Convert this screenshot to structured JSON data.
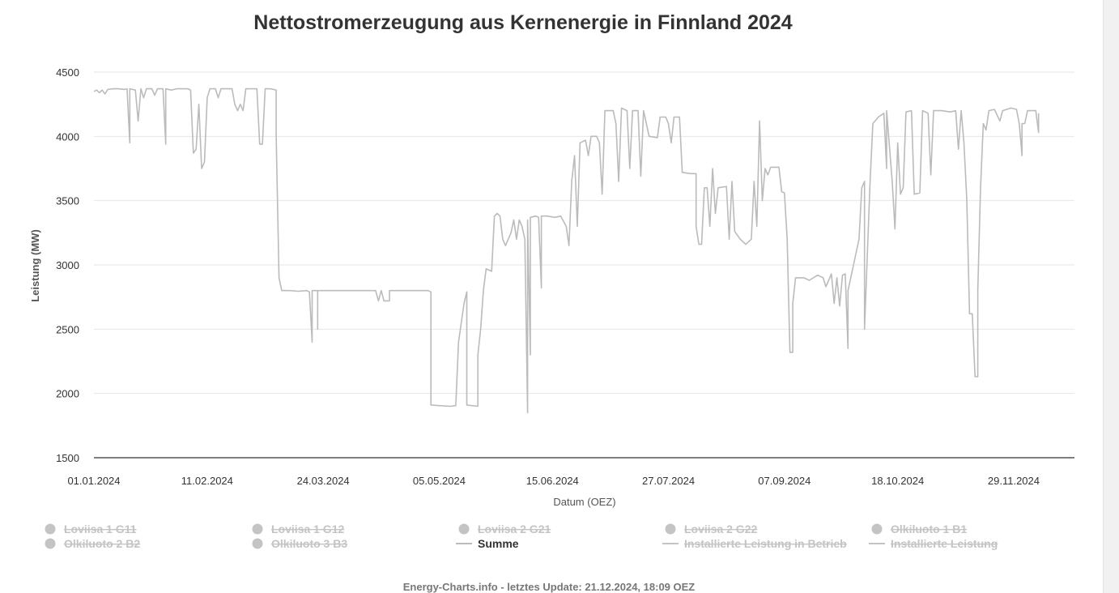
{
  "chart_data": {
    "type": "line",
    "title": "Nettostromerzeugung aus Kernenergie in Finnland 2024",
    "xlabel": "Datum (OEZ)",
    "ylabel": "Leistung (MW)",
    "ylim": [
      1500,
      4500
    ],
    "yticks": [
      1500,
      2000,
      2500,
      3000,
      3500,
      4000,
      4500
    ],
    "xlim": [
      "2024-01-01",
      "2024-12-21"
    ],
    "xticks": [
      "01.01.2024",
      "11.02.2024",
      "24.03.2024",
      "05.05.2024",
      "15.06.2024",
      "27.07.2024",
      "07.09.2024",
      "18.10.2024",
      "29.11.2024"
    ],
    "grid": true,
    "legend_position": "bottom",
    "series": [
      {
        "name": "Summe",
        "color": "#bbbbbb",
        "points": [
          [
            "2024-01-01",
            4350
          ],
          [
            "2024-01-02",
            4360
          ],
          [
            "2024-01-03",
            4340
          ],
          [
            "2024-01-04",
            4360
          ],
          [
            "2024-01-05",
            4330
          ],
          [
            "2024-01-06",
            4365
          ],
          [
            "2024-01-08",
            4370
          ],
          [
            "2024-01-10",
            4370
          ],
          [
            "2024-01-12",
            4365
          ],
          [
            "2024-01-13",
            4370
          ],
          [
            "2024-01-14",
            3950
          ],
          [
            "2024-01-14",
            4370
          ],
          [
            "2024-01-16",
            4360
          ],
          [
            "2024-01-17",
            4120
          ],
          [
            "2024-01-18",
            4370
          ],
          [
            "2024-01-19",
            4300
          ],
          [
            "2024-01-20",
            4370
          ],
          [
            "2024-01-22",
            4370
          ],
          [
            "2024-01-23",
            4320
          ],
          [
            "2024-01-24",
            4370
          ],
          [
            "2024-01-26",
            4370
          ],
          [
            "2024-01-27",
            3940
          ],
          [
            "2024-01-27",
            4370
          ],
          [
            "2024-01-29",
            4360
          ],
          [
            "2024-01-31",
            4370
          ],
          [
            "2024-02-02",
            4370
          ],
          [
            "2024-02-04",
            4370
          ],
          [
            "2024-02-05",
            4360
          ],
          [
            "2024-02-06",
            3870
          ],
          [
            "2024-02-07",
            3900
          ],
          [
            "2024-02-08",
            4250
          ],
          [
            "2024-02-09",
            3750
          ],
          [
            "2024-02-10",
            3800
          ],
          [
            "2024-02-11",
            4300
          ],
          [
            "2024-02-12",
            4370
          ],
          [
            "2024-02-14",
            4370
          ],
          [
            "2024-02-15",
            4300
          ],
          [
            "2024-02-16",
            4370
          ],
          [
            "2024-02-18",
            4370
          ],
          [
            "2024-02-20",
            4370
          ],
          [
            "2024-02-21",
            4250
          ],
          [
            "2024-02-22",
            4200
          ],
          [
            "2024-02-23",
            4250
          ],
          [
            "2024-02-24",
            4200
          ],
          [
            "2024-02-25",
            4370
          ],
          [
            "2024-02-27",
            4370
          ],
          [
            "2024-02-29",
            4370
          ],
          [
            "2024-03-01",
            3940
          ],
          [
            "2024-03-02",
            3940
          ],
          [
            "2024-03-03",
            4370
          ],
          [
            "2024-03-05",
            4370
          ],
          [
            "2024-03-07",
            4360
          ],
          [
            "2024-03-07",
            4000
          ],
          [
            "2024-03-08",
            2900
          ],
          [
            "2024-03-09",
            2800
          ],
          [
            "2024-03-12",
            2800
          ],
          [
            "2024-03-15",
            2795
          ],
          [
            "2024-03-18",
            2800
          ],
          [
            "2024-03-19",
            2790
          ],
          [
            "2024-03-20",
            2400
          ],
          [
            "2024-03-20",
            2800
          ],
          [
            "2024-03-22",
            2800
          ],
          [
            "2024-03-22",
            2500
          ],
          [
            "2024-03-22",
            2800
          ],
          [
            "2024-03-26",
            2800
          ],
          [
            "2024-04-01",
            2800
          ],
          [
            "2024-04-06",
            2800
          ],
          [
            "2024-04-12",
            2800
          ],
          [
            "2024-04-13",
            2720
          ],
          [
            "2024-04-14",
            2800
          ],
          [
            "2024-04-15",
            2720
          ],
          [
            "2024-04-17",
            2720
          ],
          [
            "2024-04-17",
            2800
          ],
          [
            "2024-04-22",
            2800
          ],
          [
            "2024-04-27",
            2800
          ],
          [
            "2024-05-01",
            2800
          ],
          [
            "2024-05-02",
            2790
          ],
          [
            "2024-05-02",
            1910
          ],
          [
            "2024-05-05",
            1905
          ],
          [
            "2024-05-09",
            1900
          ],
          [
            "2024-05-11",
            1905
          ],
          [
            "2024-05-12",
            2400
          ],
          [
            "2024-05-13",
            2550
          ],
          [
            "2024-05-14",
            2700
          ],
          [
            "2024-05-15",
            2790
          ],
          [
            "2024-05-15",
            1910
          ],
          [
            "2024-05-19",
            1900
          ],
          [
            "2024-05-19",
            2300
          ],
          [
            "2024-05-20",
            2500
          ],
          [
            "2024-05-21",
            2800
          ],
          [
            "2024-05-22",
            2970
          ],
          [
            "2024-05-24",
            2950
          ],
          [
            "2024-05-25",
            3380
          ],
          [
            "2024-05-26",
            3400
          ],
          [
            "2024-05-27",
            3380
          ],
          [
            "2024-05-28",
            3200
          ],
          [
            "2024-05-29",
            3150
          ],
          [
            "2024-05-31",
            3250
          ],
          [
            "2024-06-01",
            3350
          ],
          [
            "2024-06-02",
            3200
          ],
          [
            "2024-06-03",
            3350
          ],
          [
            "2024-06-04",
            3300
          ],
          [
            "2024-06-05",
            3200
          ],
          [
            "2024-06-06",
            1850
          ],
          [
            "2024-06-06",
            3350
          ],
          [
            "2024-06-07",
            2300
          ],
          [
            "2024-06-07",
            3370
          ],
          [
            "2024-06-09",
            3380
          ],
          [
            "2024-06-10",
            3370
          ],
          [
            "2024-06-11",
            2820
          ],
          [
            "2024-06-11",
            3380
          ],
          [
            "2024-06-13",
            3380
          ],
          [
            "2024-06-16",
            3370
          ],
          [
            "2024-06-18",
            3380
          ],
          [
            "2024-06-20",
            3300
          ],
          [
            "2024-06-21",
            3150
          ],
          [
            "2024-06-22",
            3650
          ],
          [
            "2024-06-23",
            3850
          ],
          [
            "2024-06-24",
            3300
          ],
          [
            "2024-06-25",
            3950
          ],
          [
            "2024-06-27",
            3970
          ],
          [
            "2024-06-28",
            3850
          ],
          [
            "2024-06-29",
            4000
          ],
          [
            "2024-07-01",
            4000
          ],
          [
            "2024-07-02",
            3950
          ],
          [
            "2024-07-03",
            3550
          ],
          [
            "2024-07-04",
            4200
          ],
          [
            "2024-07-07",
            4200
          ],
          [
            "2024-07-08",
            4100
          ],
          [
            "2024-07-09",
            3650
          ],
          [
            "2024-07-10",
            4220
          ],
          [
            "2024-07-12",
            4200
          ],
          [
            "2024-07-13",
            3750
          ],
          [
            "2024-07-14",
            4200
          ],
          [
            "2024-07-16",
            4200
          ],
          [
            "2024-07-17",
            3690
          ],
          [
            "2024-07-18",
            4200
          ],
          [
            "2024-07-20",
            4000
          ],
          [
            "2024-07-23",
            3990
          ],
          [
            "2024-07-24",
            4150
          ],
          [
            "2024-07-26",
            4150
          ],
          [
            "2024-07-27",
            4100
          ],
          [
            "2024-07-28",
            3950
          ],
          [
            "2024-07-29",
            4150
          ],
          [
            "2024-07-31",
            4150
          ],
          [
            "2024-08-01",
            3720
          ],
          [
            "2024-08-04",
            3710
          ],
          [
            "2024-08-06",
            3710
          ],
          [
            "2024-08-06",
            3300
          ],
          [
            "2024-08-07",
            3160
          ],
          [
            "2024-08-08",
            3160
          ],
          [
            "2024-08-09",
            3600
          ],
          [
            "2024-08-10",
            3600
          ],
          [
            "2024-08-11",
            3300
          ],
          [
            "2024-08-12",
            3750
          ],
          [
            "2024-08-13",
            3400
          ],
          [
            "2024-08-14",
            3600
          ],
          [
            "2024-08-17",
            3610
          ],
          [
            "2024-08-18",
            3200
          ],
          [
            "2024-08-19",
            3650
          ],
          [
            "2024-08-20",
            3260
          ],
          [
            "2024-08-22",
            3200
          ],
          [
            "2024-08-24",
            3160
          ],
          [
            "2024-08-26",
            3200
          ],
          [
            "2024-08-27",
            3650
          ],
          [
            "2024-08-28",
            3300
          ],
          [
            "2024-08-29",
            4120
          ],
          [
            "2024-08-30",
            3500
          ],
          [
            "2024-08-31",
            3750
          ],
          [
            "2024-09-01",
            3700
          ],
          [
            "2024-09-02",
            3760
          ],
          [
            "2024-09-05",
            3760
          ],
          [
            "2024-09-06",
            3570
          ],
          [
            "2024-09-07",
            3560
          ],
          [
            "2024-09-08",
            3200
          ],
          [
            "2024-09-09",
            2320
          ],
          [
            "2024-09-10",
            2320
          ],
          [
            "2024-09-10",
            2700
          ],
          [
            "2024-09-11",
            2900
          ],
          [
            "2024-09-14",
            2900
          ],
          [
            "2024-09-16",
            2880
          ],
          [
            "2024-09-19",
            2920
          ],
          [
            "2024-09-21",
            2900
          ],
          [
            "2024-09-22",
            2830
          ],
          [
            "2024-09-24",
            2930
          ],
          [
            "2024-09-25",
            2700
          ],
          [
            "2024-09-26",
            2900
          ],
          [
            "2024-09-27",
            2680
          ],
          [
            "2024-09-28",
            2920
          ],
          [
            "2024-09-29",
            2930
          ],
          [
            "2024-09-30",
            2350
          ],
          [
            "2024-09-30",
            2800
          ],
          [
            "2024-10-01",
            2900
          ],
          [
            "2024-10-02",
            3000
          ],
          [
            "2024-10-04",
            3200
          ],
          [
            "2024-10-05",
            3600
          ],
          [
            "2024-10-06",
            3650
          ],
          [
            "2024-10-06",
            2500
          ],
          [
            "2024-10-08",
            3650
          ],
          [
            "2024-10-09",
            4100
          ],
          [
            "2024-10-11",
            4150
          ],
          [
            "2024-10-13",
            4180
          ],
          [
            "2024-10-14",
            3750
          ],
          [
            "2024-10-14",
            4200
          ],
          [
            "2024-10-16",
            3650
          ],
          [
            "2024-10-17",
            3280
          ],
          [
            "2024-10-18",
            3950
          ],
          [
            "2024-10-19",
            3550
          ],
          [
            "2024-10-20",
            3600
          ],
          [
            "2024-10-21",
            4190
          ],
          [
            "2024-10-23",
            4200
          ],
          [
            "2024-10-24",
            3550
          ],
          [
            "2024-10-26",
            3560
          ],
          [
            "2024-10-27",
            4200
          ],
          [
            "2024-10-29",
            4180
          ],
          [
            "2024-10-30",
            3700
          ],
          [
            "2024-10-31",
            4200
          ],
          [
            "2024-11-03",
            4200
          ],
          [
            "2024-11-06",
            4190
          ],
          [
            "2024-11-08",
            4200
          ],
          [
            "2024-11-09",
            3900
          ],
          [
            "2024-11-10",
            4200
          ],
          [
            "2024-11-11",
            3950
          ],
          [
            "2024-11-12",
            3510
          ],
          [
            "2024-11-13",
            2620
          ],
          [
            "2024-11-14",
            2620
          ],
          [
            "2024-11-15",
            2130
          ],
          [
            "2024-11-16",
            2130
          ],
          [
            "2024-11-16",
            2800
          ],
          [
            "2024-11-17",
            3600
          ],
          [
            "2024-11-18",
            4100
          ],
          [
            "2024-11-19",
            4050
          ],
          [
            "2024-11-20",
            4200
          ],
          [
            "2024-11-22",
            4210
          ],
          [
            "2024-11-24",
            4120
          ],
          [
            "2024-11-25",
            4200
          ],
          [
            "2024-11-28",
            4220
          ],
          [
            "2024-11-30",
            4210
          ],
          [
            "2024-12-01",
            4100
          ],
          [
            "2024-12-02",
            3850
          ],
          [
            "2024-12-02",
            4100
          ],
          [
            "2024-12-03",
            4100
          ],
          [
            "2024-12-04",
            4200
          ],
          [
            "2024-12-07",
            4200
          ],
          [
            "2024-12-08",
            4030
          ],
          [
            "2024-12-08",
            4180
          ]
        ]
      }
    ]
  },
  "legend": {
    "items": [
      {
        "label": "Loviisa 1 G11",
        "marker": "dot",
        "visible": false
      },
      {
        "label": "Loviisa 1 G12",
        "marker": "dot",
        "visible": false
      },
      {
        "label": "Loviisa 2 G21",
        "marker": "dot",
        "visible": false
      },
      {
        "label": "Loviisa 2 G22",
        "marker": "dot",
        "visible": false
      },
      {
        "label": "Olkiluoto 1 B1",
        "marker": "dot",
        "visible": false
      },
      {
        "label": "Olkiluoto 2 B2",
        "marker": "dot",
        "visible": false
      },
      {
        "label": "Olkiluoto 3 B3",
        "marker": "dot",
        "visible": false
      },
      {
        "label": "Summe",
        "marker": "line",
        "visible": true
      },
      {
        "label": "Installierte Leistung in Betrieb",
        "marker": "line",
        "visible": false
      },
      {
        "label": "Installierte Leistung",
        "marker": "line",
        "visible": false
      }
    ]
  },
  "credits": "Energy-Charts.info - letztes Update: 21.12.2024, 18:09 OEZ",
  "colors": {
    "series": "#bbbbbb",
    "grid": "#e6e6e6",
    "axis": "#333333",
    "legend_hidden": "#c4c4c4"
  }
}
